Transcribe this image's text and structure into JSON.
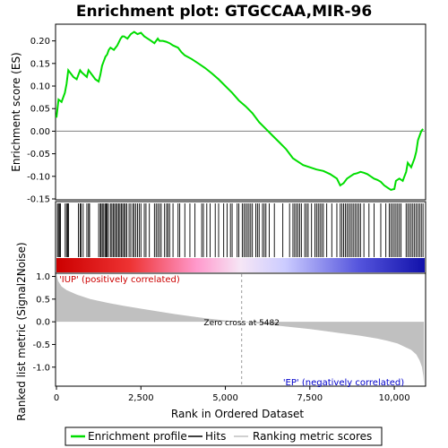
{
  "chart_data": {
    "type": "line",
    "title": "Enrichment plot: GTGCCAA,MIR-96",
    "xlabel": "Rank in Ordered Dataset",
    "ylabel_top": "Enrichment score (ES)",
    "ylabel_bottom": "Ranked list metric (Signal2Noise)",
    "xlim": [
      0,
      10900
    ],
    "es_ylim": [
      -0.15,
      0.235
    ],
    "es_yticks": [
      -0.15,
      -0.1,
      -0.05,
      0.0,
      0.05,
      0.1,
      0.15,
      0.2
    ],
    "es_ytick_labels": [
      "-0.15",
      "-0.10",
      "-0.05",
      "0.00",
      "0.05",
      "0.10",
      "0.15",
      "0.20"
    ],
    "metric_ylim": [
      -1.4,
      1.05
    ],
    "metric_yticks": [
      -1.0,
      -0.5,
      0.0,
      0.5,
      1.0
    ],
    "metric_ytick_labels": [
      "-1.0",
      "-0.5",
      "0.0",
      "0.5",
      "1.0"
    ],
    "xticks": [
      0,
      2500,
      5000,
      7500,
      10000
    ],
    "xtick_labels": [
      "0",
      "2,500",
      "5,000",
      "7,500",
      "10,000"
    ],
    "zero_cross_rank": 5482,
    "zero_cross_label": "Zero cross at 5482",
    "pos_label": "'IUP' (positively correlated)",
    "neg_label": "'EP' (negatively correlated)",
    "es_curve": {
      "x": [
        0,
        60,
        150,
        250,
        300,
        350,
        400,
        500,
        600,
        700,
        750,
        900,
        950,
        1050,
        1150,
        1250,
        1300,
        1350,
        1400,
        1450,
        1500,
        1550,
        1600,
        1700,
        1800,
        1900,
        1950,
        2000,
        2100,
        2200,
        2300,
        2400,
        2500,
        2600,
        2700,
        2800,
        2900,
        3000,
        3050,
        3150,
        3250,
        3350,
        3450,
        3600,
        3700,
        3800,
        4000,
        4200,
        4400,
        4600,
        4800,
        5000,
        5200,
        5400,
        5600,
        5800,
        6000,
        6200,
        6400,
        6600,
        6800,
        7000,
        7100,
        7200,
        7300,
        7500,
        7700,
        7900,
        8100,
        8300,
        8400,
        8500,
        8600,
        8700,
        8800,
        8900,
        9000,
        9100,
        9200,
        9300,
        9400,
        9500,
        9600,
        9700,
        9800,
        9900,
        10000,
        10050,
        10150,
        10250,
        10300,
        10350,
        10400,
        10450,
        10500,
        10550,
        10600,
        10650,
        10700,
        10750,
        10800,
        10850
      ],
      "y": [
        0.03,
        0.07,
        0.065,
        0.085,
        0.105,
        0.135,
        0.13,
        0.12,
        0.115,
        0.135,
        0.13,
        0.12,
        0.135,
        0.125,
        0.115,
        0.11,
        0.125,
        0.145,
        0.155,
        0.165,
        0.17,
        0.18,
        0.185,
        0.18,
        0.19,
        0.205,
        0.21,
        0.21,
        0.205,
        0.215,
        0.22,
        0.215,
        0.218,
        0.21,
        0.205,
        0.2,
        0.195,
        0.205,
        0.2,
        0.2,
        0.198,
        0.195,
        0.19,
        0.185,
        0.175,
        0.168,
        0.16,
        0.15,
        0.14,
        0.128,
        0.115,
        0.1,
        0.085,
        0.068,
        0.055,
        0.04,
        0.02,
        0.005,
        -0.01,
        -0.025,
        -0.04,
        -0.06,
        -0.065,
        -0.07,
        -0.075,
        -0.08,
        -0.085,
        -0.088,
        -0.095,
        -0.105,
        -0.12,
        -0.115,
        -0.105,
        -0.1,
        -0.095,
        -0.093,
        -0.09,
        -0.092,
        -0.095,
        -0.1,
        -0.105,
        -0.108,
        -0.112,
        -0.12,
        -0.125,
        -0.13,
        -0.128,
        -0.11,
        -0.105,
        -0.11,
        -0.1,
        -0.09,
        -0.07,
        -0.075,
        -0.08,
        -0.07,
        -0.06,
        -0.045,
        -0.02,
        -0.01,
        0.0,
        0.005
      ]
    },
    "hit_ranks": [
      30,
      60,
      90,
      120,
      260,
      300,
      330,
      360,
      650,
      700,
      730,
      790,
      900,
      950,
      980,
      1250,
      1300,
      1320,
      1360,
      1400,
      1440,
      1470,
      1500,
      1540,
      1600,
      1640,
      1680,
      1720,
      1760,
      1800,
      1840,
      1880,
      1920,
      1960,
      2000,
      2040,
      2080,
      2150,
      2200,
      2260,
      2300,
      2350,
      2400,
      2450,
      2500,
      2600,
      2650,
      2750,
      2900,
      2950,
      3000,
      3050,
      3100,
      3200,
      3260,
      3300,
      3350,
      3450,
      3600,
      3650,
      3800,
      3950,
      4100,
      4300,
      4350,
      4450,
      4550,
      4700,
      4800,
      4950,
      5050,
      5150,
      5200,
      5350,
      5400,
      5500,
      5550,
      5600,
      5650,
      5700,
      5750,
      5800,
      5900,
      5950,
      6000,
      6100,
      6150,
      6200,
      6300,
      6450,
      6700,
      6900,
      7000,
      7050,
      7100,
      7150,
      7200,
      7250,
      7350,
      7400,
      7450,
      7550,
      7650,
      7700,
      7750,
      7800,
      7850,
      7900,
      8000,
      8150,
      8300,
      8400,
      8450,
      8500,
      8550,
      8600,
      8650,
      8700,
      8750,
      8800,
      8850,
      8900,
      8950,
      9000,
      9100,
      9250,
      9400,
      9600,
      9750,
      9850,
      9900,
      9950,
      10000,
      10050,
      10100,
      10150,
      10200,
      10350,
      10400,
      10450,
      10500,
      10550,
      10600,
      10650,
      10700,
      10750,
      10800,
      10850
    ],
    "metric_curve": {
      "x": [
        0,
        50,
        150,
        300,
        600,
        1000,
        1500,
        2000,
        2500,
        3000,
        3500,
        4000,
        4500,
        5000,
        5482,
        6000,
        6500,
        7000,
        7500,
        8000,
        8500,
        9000,
        9500,
        9800,
        10100,
        10300,
        10500,
        10650,
        10750,
        10820,
        10860,
        10880
      ],
      "y": [
        1.05,
        0.9,
        0.78,
        0.7,
        0.6,
        0.5,
        0.42,
        0.35,
        0.29,
        0.23,
        0.17,
        0.12,
        0.07,
        0.03,
        0.0,
        -0.04,
        -0.08,
        -0.12,
        -0.16,
        -0.21,
        -0.26,
        -0.31,
        -0.37,
        -0.42,
        -0.48,
        -0.55,
        -0.62,
        -0.72,
        -0.85,
        -1.0,
        -1.2,
        -1.38
      ]
    },
    "legend": [
      "Enrichment profile",
      "Hits",
      "Ranking metric scores"
    ],
    "colors": {
      "es_line": "#00dd00",
      "hits": "#000000",
      "metric_fill": "#c0c0c0",
      "zero_line": "#808080",
      "pos": "#cc0000",
      "neg": "#0000cc"
    }
  }
}
